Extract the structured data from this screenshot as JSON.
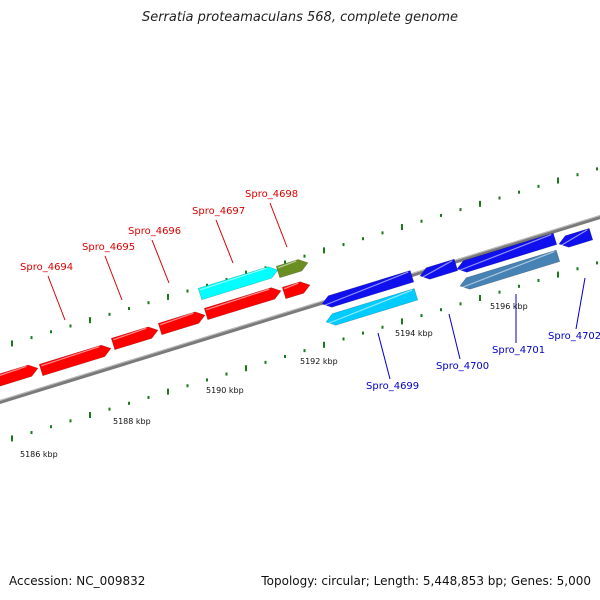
{
  "title": "Serratia proteamaculans 568, complete genome",
  "footer": {
    "accession": "Accession: NC_009832",
    "topology": "Topology: circular; Length: 5,448,853 bp; Genes: 5,000"
  },
  "colors": {
    "forward_cds": "#ff0000",
    "reverse_cds": "#1010ee",
    "forward_highlight": "#00ffff",
    "reverse_highlight": "#00ccff",
    "reverse_selected": "#4682b4",
    "forward_olive": "#6b8e23",
    "forward_label": "#dd0000",
    "reverse_label": "#0000cc",
    "backbone": "#888888",
    "tick": "#1a7a1a"
  },
  "chart_data": {
    "type": "genome-map",
    "axis_unit": "kbp",
    "axis_labels": [
      "5186 kbp",
      "5188 kbp",
      "5190 kbp",
      "5192 kbp",
      "5194 kbp",
      "5196 kbp"
    ],
    "genes": [
      {
        "name": "",
        "strand": "+"
      },
      {
        "name": "",
        "strand": "+"
      },
      {
        "name": "Spro_4694",
        "strand": "+"
      },
      {
        "name": "Spro_4695",
        "strand": "+"
      },
      {
        "name": "Spro_4696",
        "strand": "+"
      },
      {
        "name": "Spro_4697",
        "strand": "+"
      },
      {
        "name": "Spro_4698",
        "strand": "+"
      },
      {
        "name": "Spro_4699",
        "strand": "-"
      },
      {
        "name": "Spro_4700",
        "strand": "-"
      },
      {
        "name": "Spro_4701",
        "strand": "-"
      },
      {
        "name": "Spro_4702",
        "strand": "-"
      }
    ]
  }
}
